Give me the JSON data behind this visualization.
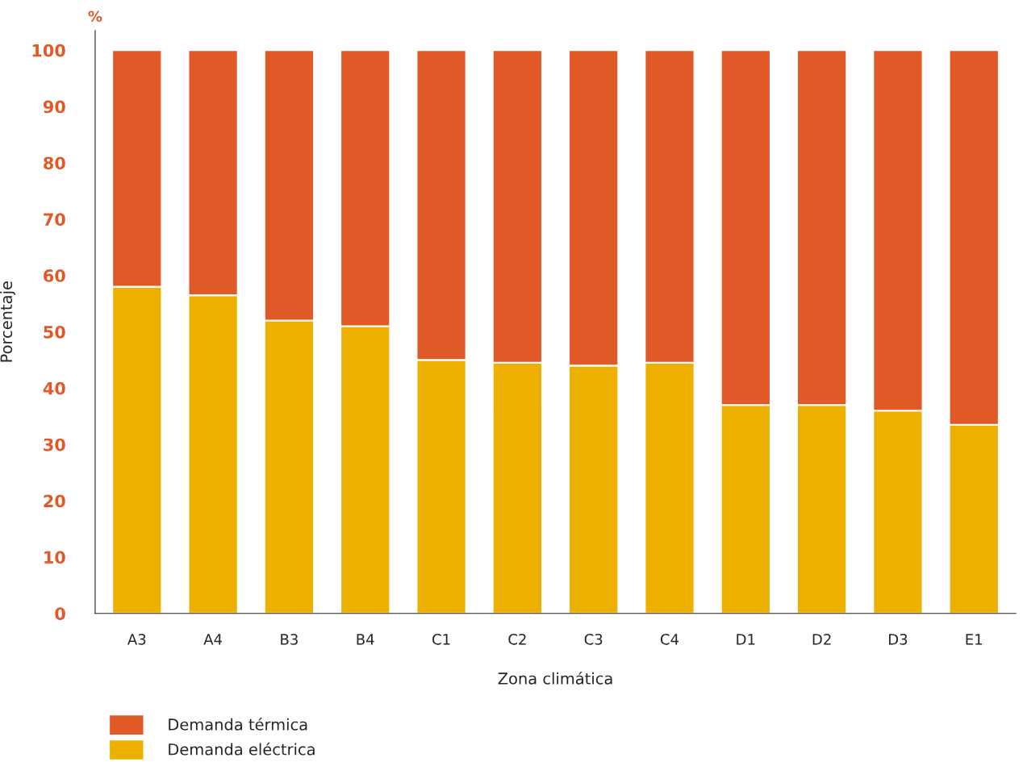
{
  "chart_data": {
    "type": "bar",
    "stacked": true,
    "xlabel": "Zona climática",
    "ylabel": "Porcentaje",
    "annotations": [
      "%"
    ],
    "categories": [
      "A3",
      "A4",
      "B3",
      "B4",
      "C1",
      "C2",
      "C3",
      "C4",
      "D1",
      "D2",
      "D3",
      "E1"
    ],
    "series": [
      {
        "name": "Demanda eléctrica",
        "color": "#edb000",
        "values": [
          58,
          56.5,
          52,
          51,
          45,
          44.5,
          44,
          44.5,
          37,
          37,
          36,
          33.5
        ]
      },
      {
        "name": "Demanda térmica",
        "color": "#e05a27",
        "values": [
          42,
          43.5,
          48,
          49,
          55,
          55.5,
          56,
          55.5,
          63,
          63,
          64,
          66.5
        ]
      }
    ],
    "ylim": [
      0,
      103.5
    ],
    "yticks": [
      0,
      10,
      20,
      30,
      40,
      50,
      60,
      70,
      80,
      90,
      100
    ],
    "grid": false,
    "legend": "bottom left"
  }
}
